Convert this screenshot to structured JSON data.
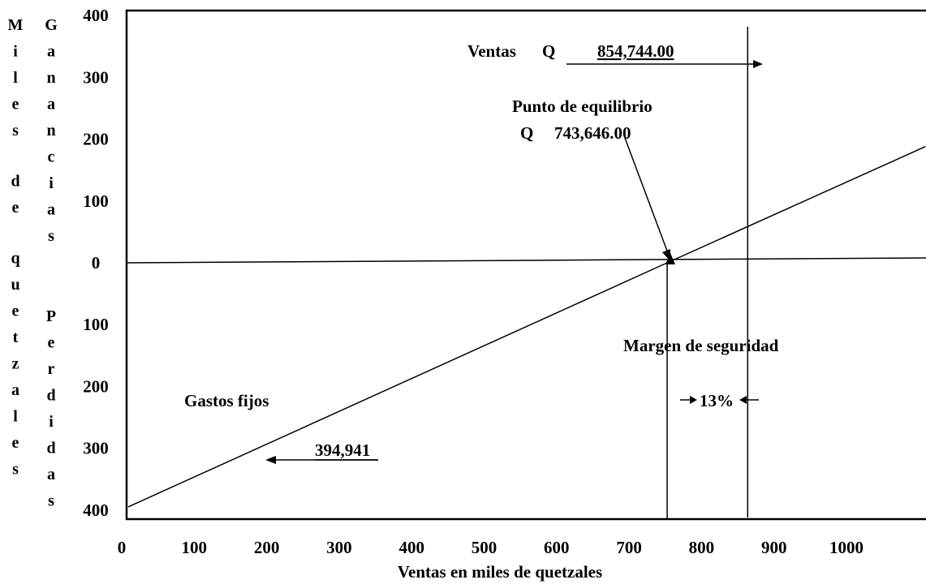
{
  "chart_data": {
    "type": "line",
    "title": "",
    "xlabel": "Ventas en miles de quetzales",
    "ylabel_left": "Miles de quetzales",
    "ylabel_upper": "Ganancias",
    "ylabel_lower": "Perdidas",
    "x_ticks": [
      "0",
      "100",
      "200",
      "300",
      "400",
      "500",
      "600",
      "700",
      "800",
      "900",
      "1000"
    ],
    "x_tick_values": [
      0,
      100,
      200,
      300,
      400,
      500,
      600,
      700,
      800,
      900,
      1000
    ],
    "y_ticks": [
      "400",
      "300",
      "200",
      "100",
      "0",
      "100",
      "200",
      "300",
      "400"
    ],
    "y_tick_values": [
      400,
      300,
      200,
      100,
      0,
      -100,
      -200,
      -300,
      -400
    ],
    "xlim": [
      0,
      1100
    ],
    "ylim": [
      -420,
      420
    ],
    "grid": false,
    "series": [
      {
        "values": [
          [
            0,
            -394.941
          ],
          [
            743.646,
            0
          ],
          [
            1100,
            188
          ]
        ]
      }
    ],
    "zero_line": 0,
    "breakeven_x": 743.646,
    "sales_x": 854.744,
    "annotations": {
      "ventas_label": "Ventas",
      "ventas_currency": "Q",
      "ventas_value": "854,744.00",
      "equilibrio_label": "Punto de equilibrio",
      "equilibrio_currency": "Q",
      "equilibrio_value": "743,646.00",
      "margen_label": "Margen de seguridad",
      "margen_value": "13%",
      "gastos_label": "Gastos fijos",
      "gastos_value": "394,941"
    }
  }
}
